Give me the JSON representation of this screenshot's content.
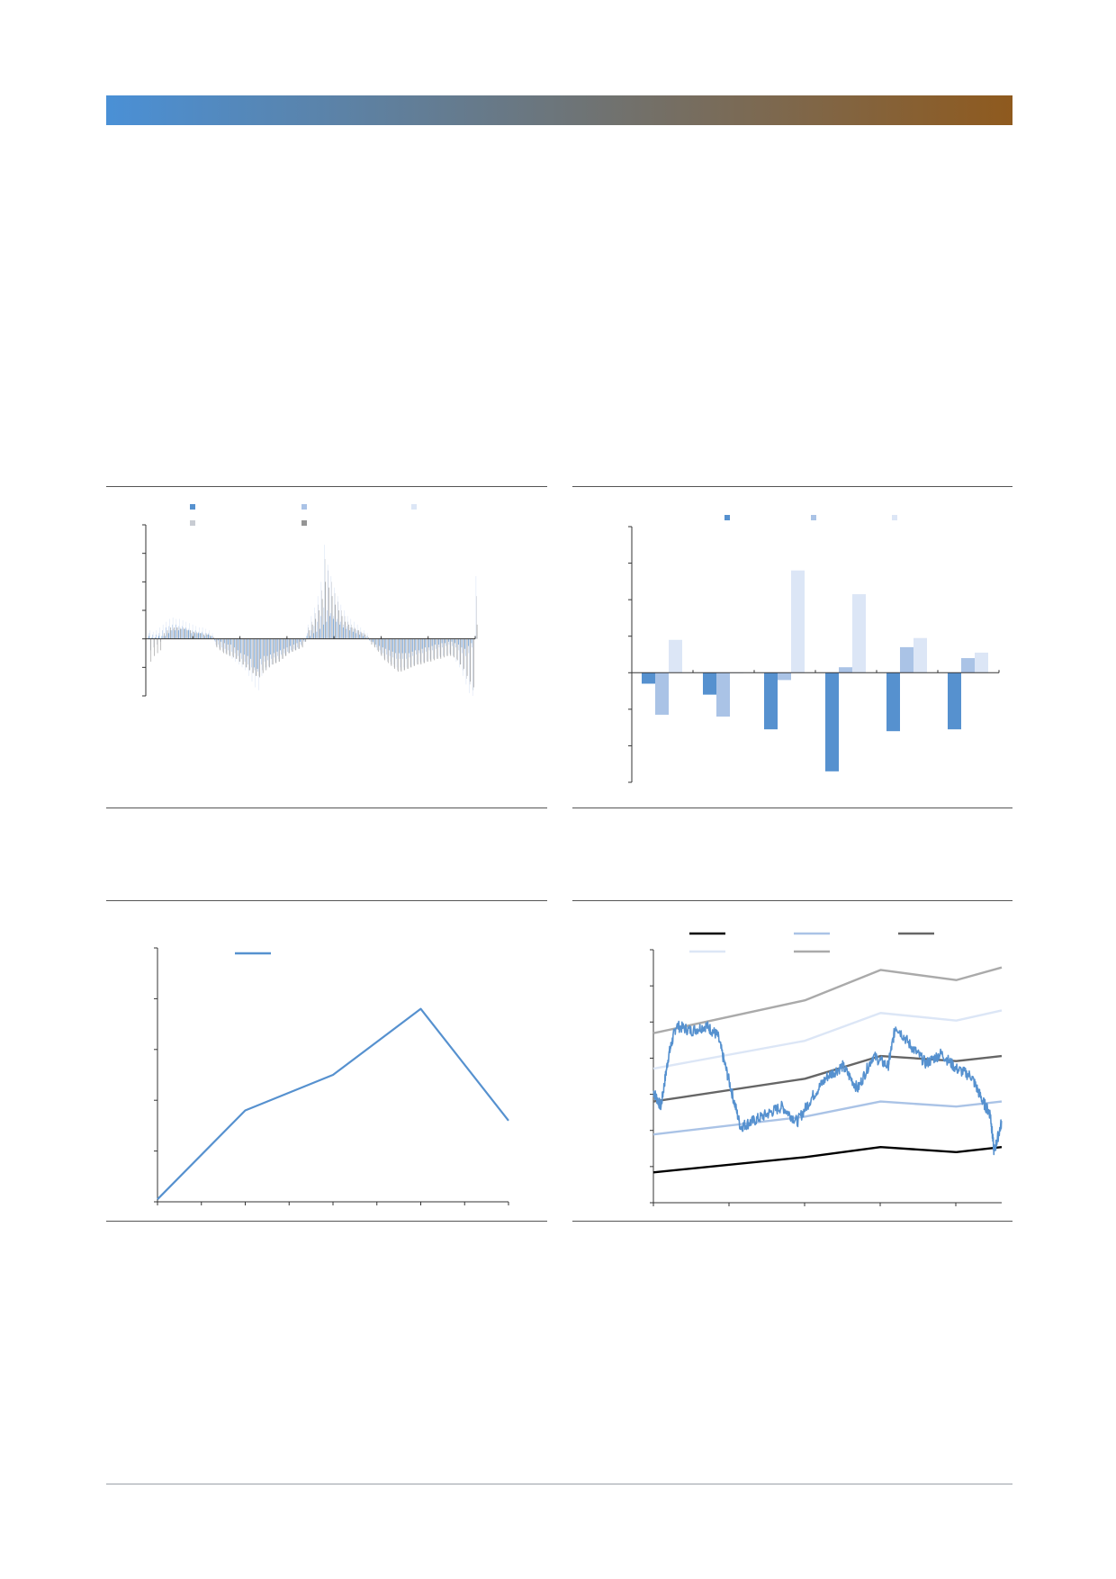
{
  "header": {
    "gradient_start": "#4a90d6",
    "gradient_end": "#8f5a1e"
  },
  "colors": {
    "blue": "#5691cf",
    "light_blue": "#aac3e6",
    "pale_blue": "#dce6f6",
    "light_grey": "#c8ccd3",
    "mid_grey": "#959595",
    "dark_grey": "#666666",
    "black": "#000000",
    "gray_band": "#aaaaaa",
    "axis": "#333333",
    "rule": "#555555"
  },
  "chart_data": [
    {
      "type": "bar",
      "title": "",
      "legend_position": "top",
      "legend_rows": 2,
      "x_count": 100,
      "ylim": [
        -2,
        4
      ],
      "y_ticks": 7,
      "x_ticks": 8,
      "series": [
        {
          "name": "",
          "color": "#5691cf",
          "values": [
            0.1,
            0.05,
            0.05,
            0.1,
            0.1,
            0.1,
            0.2,
            0.3,
            0.3,
            0.3,
            0.35,
            0.35,
            0.3,
            0.2,
            0.2,
            0.2,
            0.2,
            0.1,
            0.15,
            0.1,
            -0.05,
            -0.05,
            -0.1,
            -0.15,
            -0.2,
            -0.2,
            -0.3,
            -0.4,
            -0.5,
            -0.55,
            -0.6,
            -0.7,
            -1.0,
            -1.05,
            -0.7,
            -0.6,
            -0.6,
            -0.55,
            -0.5,
            -0.45,
            -0.4,
            -0.35,
            -0.3,
            -0.25,
            -0.2,
            -0.15,
            -0.1,
            -0.05,
            0.1,
            0.1,
            0.2,
            0.25,
            0.35,
            0.5,
            0.6,
            0.8,
            0.7,
            0.6,
            0.5,
            0.4,
            0.35,
            0.3,
            0.25,
            0.2,
            0.15,
            0.1,
            0.05,
            -0.05,
            -0.1,
            -0.2,
            -0.25,
            -0.3,
            -0.35,
            -0.4,
            -0.45,
            -0.5,
            -0.5,
            -0.5,
            -0.5,
            -0.5,
            -0.45,
            -0.4,
            -0.4,
            -0.35,
            -0.3,
            -0.3,
            -0.25,
            -0.2,
            -0.2,
            -0.15,
            -0.15,
            -0.1,
            -0.1,
            -0.15,
            -0.2,
            -0.3,
            -0.35,
            -0.25,
            -0.15,
            0.0
          ]
        },
        {
          "name": "",
          "color": "#aac3e6",
          "values": [
            0.2,
            0.15,
            0.15,
            0.2,
            0.3,
            0.4,
            0.45,
            0.5,
            0.5,
            0.45,
            0.45,
            0.4,
            0.35,
            0.3,
            0.3,
            0.25,
            0.25,
            0.2,
            0.2,
            0.1,
            -0.1,
            -0.2,
            -0.3,
            -0.35,
            -0.4,
            -0.45,
            -0.5,
            -0.6,
            -0.7,
            -0.8,
            -0.9,
            -1.0,
            -1.1,
            -1.15,
            -0.9,
            -0.8,
            -0.75,
            -0.7,
            -0.65,
            -0.6,
            -0.55,
            -0.5,
            -0.45,
            -0.4,
            -0.35,
            -0.3,
            -0.2,
            -0.1,
            0.2,
            0.3,
            0.45,
            0.6,
            0.8,
            1.1,
            1.0,
            0.9,
            0.8,
            0.7,
            0.6,
            0.5,
            0.45,
            0.4,
            0.35,
            0.3,
            0.25,
            0.2,
            0.1,
            -0.05,
            -0.15,
            -0.3,
            -0.4,
            -0.5,
            -0.55,
            -0.6,
            -0.65,
            -0.7,
            -0.7,
            -0.7,
            -0.7,
            -0.65,
            -0.6,
            -0.55,
            -0.5,
            -0.5,
            -0.45,
            -0.4,
            -0.4,
            -0.35,
            -0.3,
            -0.3,
            -0.25,
            -0.2,
            -0.25,
            -0.3,
            -0.4,
            -0.5,
            -0.6,
            -0.5,
            -0.3,
            0.1
          ]
        },
        {
          "name": "",
          "color": "#dce6f6",
          "values": [
            0.3,
            0.25,
            0.3,
            0.4,
            0.5,
            0.6,
            0.7,
            0.75,
            0.7,
            0.7,
            0.65,
            0.6,
            0.55,
            0.5,
            0.45,
            0.4,
            0.4,
            0.35,
            0.3,
            0.2,
            -0.2,
            -0.3,
            -0.4,
            -0.5,
            -0.6,
            -0.7,
            -0.8,
            -0.9,
            -1.0,
            -1.1,
            -1.3,
            -1.5,
            -1.7,
            -1.8,
            -1.3,
            -1.1,
            -1.0,
            -0.9,
            -0.8,
            -0.7,
            -0.6,
            -0.55,
            -0.5,
            -0.45,
            -0.4,
            -0.35,
            -0.25,
            -0.1,
            0.5,
            0.8,
            1.1,
            1.5,
            2.0,
            3.3,
            2.6,
            2.2,
            1.8,
            1.5,
            1.2,
            1.0,
            0.8,
            0.7,
            0.6,
            0.5,
            0.4,
            0.3,
            0.2,
            -0.1,
            -0.2,
            -0.4,
            -0.5,
            -0.6,
            -0.7,
            -0.8,
            -0.9,
            -1.0,
            -1.0,
            -1.0,
            -1.0,
            -0.95,
            -0.9,
            -0.85,
            -0.8,
            -0.8,
            -0.75,
            -0.7,
            -0.7,
            -0.65,
            -0.6,
            -0.6,
            -0.55,
            -0.5,
            -0.6,
            -0.8,
            -1.0,
            -1.3,
            -1.6,
            -1.9,
            -2.0,
            2.2
          ]
        },
        {
          "name": "",
          "color": "#c8ccd3",
          "values": [
            -0.4,
            -0.3,
            -0.2,
            -0.1,
            0.1,
            0.2,
            0.3,
            0.35,
            0.4,
            0.4,
            0.4,
            0.35,
            0.3,
            0.25,
            0.25,
            0.2,
            0.2,
            0.2,
            0.15,
            0.1,
            -0.25,
            -0.35,
            -0.45,
            -0.5,
            -0.55,
            -0.6,
            -0.7,
            -0.8,
            -0.9,
            -1.0,
            -1.1,
            -1.2,
            -1.3,
            -1.3,
            -1.1,
            -1.0,
            -0.95,
            -0.9,
            -0.85,
            -0.8,
            -0.7,
            -0.6,
            -0.5,
            -0.45,
            -0.4,
            -0.35,
            -0.25,
            -0.1,
            0.4,
            0.6,
            0.9,
            1.2,
            1.7,
            2.8,
            2.4,
            2.0,
            1.6,
            1.3,
            1.0,
            0.8,
            0.6,
            0.5,
            0.4,
            0.3,
            0.25,
            0.2,
            0.1,
            -0.1,
            -0.25,
            -0.4,
            -0.55,
            -0.7,
            -0.8,
            -0.9,
            -1.0,
            -1.1,
            -1.1,
            -1.1,
            -1.05,
            -1.0,
            -0.95,
            -0.9,
            -0.85,
            -0.85,
            -0.8,
            -0.75,
            -0.7,
            -0.7,
            -0.65,
            -0.6,
            -0.6,
            -0.55,
            -0.6,
            -0.7,
            -0.9,
            -1.1,
            -1.4,
            -1.6,
            -1.8,
            1.5
          ]
        },
        {
          "name": "",
          "color": "#959595",
          "values": [
            -0.8,
            -0.6,
            -0.5,
            -0.4,
            0.2,
            0.3,
            0.4,
            0.4,
            0.4,
            0.35,
            0.35,
            0.3,
            0.3,
            0.25,
            0.2,
            0.2,
            0.15,
            0.15,
            0.1,
            0.05,
            -0.3,
            -0.4,
            -0.5,
            -0.55,
            -0.6,
            -0.65,
            -0.7,
            -0.8,
            -0.9,
            -1.0,
            -1.1,
            -1.2,
            -1.3,
            -1.35,
            -1.2,
            -1.1,
            -1.0,
            -0.9,
            -0.85,
            -0.8,
            -0.7,
            -0.6,
            -0.5,
            -0.45,
            -0.4,
            -0.35,
            -0.3,
            -0.1,
            0.3,
            0.5,
            0.7,
            1.0,
            1.4,
            2.0,
            1.8,
            1.5,
            1.2,
            1.0,
            0.8,
            0.6,
            0.5,
            0.4,
            0.35,
            0.3,
            0.2,
            0.15,
            0.05,
            -0.2,
            -0.3,
            -0.45,
            -0.6,
            -0.75,
            -0.85,
            -0.95,
            -1.05,
            -1.15,
            -1.15,
            -1.1,
            -1.05,
            -1.0,
            -0.95,
            -0.9,
            -0.9,
            -0.85,
            -0.8,
            -0.8,
            -0.75,
            -0.7,
            -0.7,
            -0.65,
            -0.6,
            -0.6,
            -0.65,
            -0.75,
            -0.9,
            -1.05,
            -1.3,
            -1.5,
            -1.7,
            0.5
          ]
        }
      ]
    },
    {
      "type": "bar",
      "title": "",
      "legend_position": "top",
      "categories": [
        "",
        "",
        "",
        "",
        "",
        ""
      ],
      "ylim": [
        -3,
        4
      ],
      "y_ticks": 8,
      "series": [
        {
          "name": "",
          "color": "#5691cf",
          "values": [
            -0.3,
            -0.6,
            -1.55,
            -2.7,
            -1.6,
            -1.55
          ]
        },
        {
          "name": "",
          "color": "#aac3e6",
          "values": [
            -1.15,
            -1.2,
            -0.2,
            0.15,
            0.7,
            0.4
          ]
        },
        {
          "name": "",
          "color": "#dce6f6",
          "values": [
            0.9,
            0.0,
            2.8,
            2.15,
            0.95,
            0.55
          ]
        }
      ]
    },
    {
      "type": "line",
      "title": "",
      "legend_position": "top-left",
      "x": [
        0,
        1,
        2,
        3,
        4
      ],
      "ylim": [
        0,
        5
      ],
      "y_ticks": 6,
      "x_ticks": 9,
      "series": [
        {
          "name": "",
          "color": "#5691cf",
          "values": [
            0.05,
            1.8,
            2.5,
            3.8,
            1.6
          ]
        }
      ]
    },
    {
      "type": "line",
      "title": "",
      "legend_position": "top",
      "ylim": [
        0,
        100
      ],
      "y_ticks": 8,
      "x_ticks": 6,
      "bands": {
        "x": [
          0,
          2,
          3,
          4,
          4.6
        ],
        "series": [
          {
            "name": "",
            "color": "#000000",
            "values": [
              12,
              18,
              22,
              20,
              22
            ]
          },
          {
            "name": "",
            "color": "#aac3e6",
            "values": [
              27,
              34,
              40,
              38,
              40
            ]
          },
          {
            "name": "",
            "color": "#666666",
            "values": [
              40,
              49,
              58,
              56,
              58
            ]
          },
          {
            "name": "",
            "color": "#dce6f6",
            "values": [
              53,
              64,
              75,
              72,
              76
            ]
          },
          {
            "name": "",
            "color": "#aaaaaa",
            "values": [
              67,
              80,
              92,
              88,
              93
            ]
          }
        ]
      },
      "price": {
        "name": "",
        "color": "#5691cf",
        "anchors": [
          [
            0,
            44
          ],
          [
            0.1,
            38
          ],
          [
            0.2,
            58
          ],
          [
            0.3,
            70
          ],
          [
            0.5,
            68
          ],
          [
            0.7,
            70
          ],
          [
            0.85,
            66
          ],
          [
            1.0,
            48
          ],
          [
            1.15,
            30
          ],
          [
            1.3,
            32
          ],
          [
            1.5,
            35
          ],
          [
            1.7,
            38
          ],
          [
            1.9,
            32
          ],
          [
            2.1,
            42
          ],
          [
            2.3,
            50
          ],
          [
            2.5,
            54
          ],
          [
            2.7,
            45
          ],
          [
            2.9,
            58
          ],
          [
            3.1,
            54
          ],
          [
            3.2,
            70
          ],
          [
            3.4,
            62
          ],
          [
            3.6,
            55
          ],
          [
            3.8,
            59
          ],
          [
            4.0,
            53
          ],
          [
            4.2,
            50
          ],
          [
            4.35,
            40
          ],
          [
            4.45,
            35
          ],
          [
            4.5,
            20
          ],
          [
            4.6,
            32
          ]
        ]
      }
    }
  ]
}
